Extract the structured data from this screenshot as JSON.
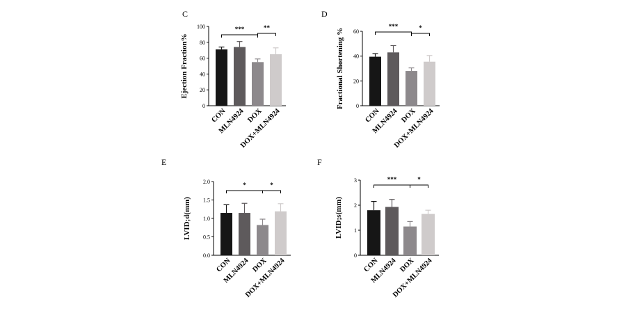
{
  "chart_data": [
    {
      "panel": "C",
      "type": "bar",
      "ylabel": "Ejection Fraction%",
      "categories": [
        "CON",
        "MLN4924",
        "DOX",
        "DOX+MLN4924"
      ],
      "values": [
        71,
        74,
        55,
        65
      ],
      "errors": [
        3,
        7,
        4,
        8
      ],
      "colors": [
        "#161616",
        "#5e5a5c",
        "#8d898c",
        "#cfcbcb"
      ],
      "ylim": [
        0,
        100
      ],
      "yticks": [
        "0",
        "20",
        "40",
        "60",
        "80",
        "100"
      ],
      "significance": [
        {
          "from": 0,
          "to": 2,
          "label": "***"
        },
        {
          "from": 2,
          "to": 3,
          "label": "**"
        }
      ]
    },
    {
      "panel": "D",
      "type": "bar",
      "ylabel": "Fractional Shortening %",
      "categories": [
        "CON",
        "MLN4924",
        "DOX",
        "DOX+MLN4924"
      ],
      "values": [
        39.5,
        43,
        28,
        35.5
      ],
      "errors": [
        2.5,
        5.5,
        2.5,
        5
      ],
      "colors": [
        "#161616",
        "#5e5a5c",
        "#8d898c",
        "#cfcbcb"
      ],
      "ylim": [
        0,
        60
      ],
      "yticks": [
        "0",
        "20",
        "40",
        "60"
      ],
      "significance": [
        {
          "from": 0,
          "to": 2,
          "label": "***"
        },
        {
          "from": 2,
          "to": 3,
          "label": "*"
        }
      ]
    },
    {
      "panel": "E",
      "type": "bar",
      "ylabel": "LVID;d(mm)",
      "categories": [
        "CON",
        "MLN4924",
        "DOX",
        "DOX+MLN4924"
      ],
      "values": [
        1.15,
        1.15,
        0.82,
        1.19
      ],
      "errors": [
        0.22,
        0.26,
        0.16,
        0.21
      ],
      "colors": [
        "#161616",
        "#5e5a5c",
        "#8d898c",
        "#cfcbcb"
      ],
      "ylim": [
        0,
        2.0
      ],
      "yticks": [
        "0.0",
        "0.5",
        "1.0",
        "1.5",
        "2.0"
      ],
      "significance": [
        {
          "from": 0,
          "to": 2,
          "label": "*"
        },
        {
          "from": 2,
          "to": 3,
          "label": "*"
        }
      ]
    },
    {
      "panel": "F",
      "type": "bar",
      "ylabel": "LVID;s(mm)",
      "categories": [
        "CON",
        "MLN4924",
        "DOX",
        "DOX+MLN4924"
      ],
      "values": [
        1.8,
        1.93,
        1.15,
        1.65
      ],
      "errors": [
        0.35,
        0.3,
        0.2,
        0.15
      ],
      "colors": [
        "#161616",
        "#5e5a5c",
        "#8d898c",
        "#cfcbcb"
      ],
      "ylim": [
        0,
        3
      ],
      "yticks": [
        "0",
        "1",
        "2",
        "3"
      ],
      "significance": [
        {
          "from": 0,
          "to": 2,
          "label": "***"
        },
        {
          "from": 2,
          "to": 3,
          "label": "*"
        }
      ]
    }
  ]
}
